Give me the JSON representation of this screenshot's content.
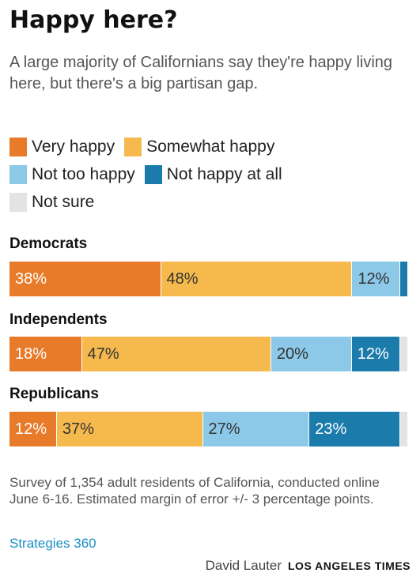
{
  "title": "Happy here?",
  "subtitle": "A large majority of Californians say they're happy living here, but there's a big partisan gap.",
  "chart_data": {
    "type": "bar",
    "stacked": true,
    "orientation": "horizontal",
    "categories": [
      "Democrats",
      "Independents",
      "Republicans"
    ],
    "series": [
      {
        "name": "Very happy",
        "color": "#e87b2a",
        "values": [
          38,
          18,
          12
        ]
      },
      {
        "name": "Somewhat happy",
        "color": "#f6b94d",
        "values": [
          48,
          47,
          37
        ]
      },
      {
        "name": "Not too happy",
        "color": "#8cc8e8",
        "values": [
          12,
          20,
          27
        ]
      },
      {
        "name": "Not happy at all",
        "color": "#1b7cac",
        "values": [
          2,
          12,
          23
        ]
      },
      {
        "name": "Not sure",
        "color": "#e3e3e3",
        "values": [
          0,
          2,
          2
        ]
      }
    ],
    "data_labels": [
      [
        "38%",
        "48%",
        "12%",
        "",
        ""
      ],
      [
        "18%",
        "47%",
        "20%",
        "12%",
        ""
      ],
      [
        "12%",
        "37%",
        "27%",
        "23%",
        ""
      ]
    ],
    "label_colors": [
      "#ffffff",
      "#333333",
      "#333333",
      "#ffffff",
      "#333333"
    ]
  },
  "footnote": "Survey of 1,354 adult residents of California, conducted online June 6-16. Estimated margin of error +/- 3 percentage points.",
  "source": "Strategies 360",
  "byline": "David Lauter",
  "organization": "LOS ANGELES TIMES"
}
